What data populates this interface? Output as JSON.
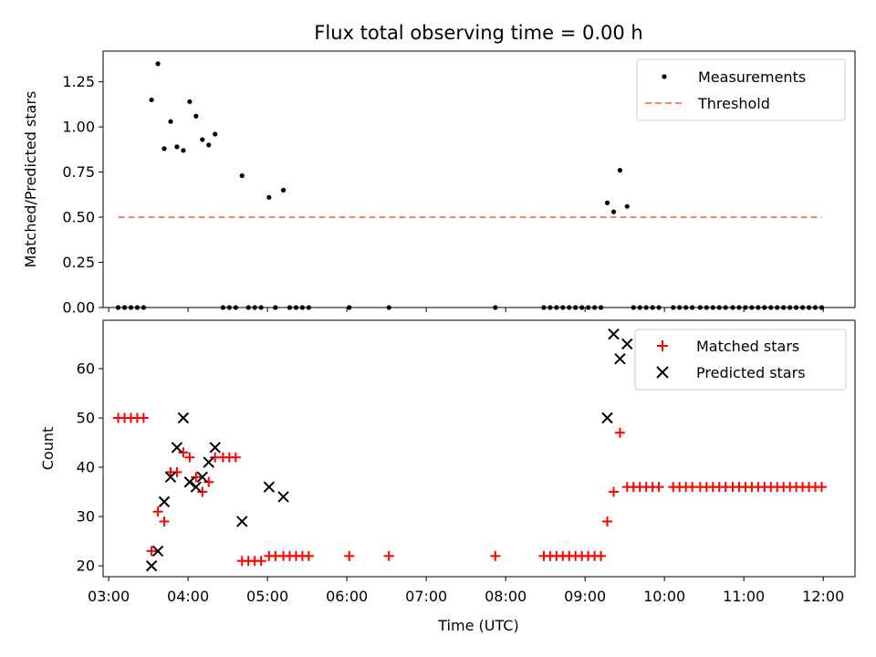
{
  "chart_data": [
    {
      "type": "scatter",
      "title": "Flux total observing time = 0.00 h",
      "xlabel": "",
      "ylabel": "Matched/Predicted stars",
      "ylim": [
        0,
        1.42
      ],
      "yticks": [
        "0.00",
        "0.25",
        "0.50",
        "0.75",
        "1.00",
        "1.25"
      ],
      "ytick_values": [
        0,
        0.25,
        0.5,
        0.75,
        1.0,
        1.25
      ],
      "legend_position": "upper right",
      "threshold": {
        "name": "Threshold",
        "y": 0.5,
        "x_range": [
          3.12,
          11.98
        ],
        "color": "#ff7f7f"
      },
      "measurements": {
        "name": "Measurements",
        "color": "#000000",
        "points": [
          [
            3.12,
            0
          ],
          [
            3.2,
            0
          ],
          [
            3.28,
            0
          ],
          [
            3.36,
            0
          ],
          [
            3.44,
            0
          ],
          [
            3.54,
            1.15
          ],
          [
            3.62,
            1.35
          ],
          [
            3.7,
            0.88
          ],
          [
            3.78,
            1.03
          ],
          [
            3.86,
            0.89
          ],
          [
            3.94,
            0.87
          ],
          [
            4.02,
            1.14
          ],
          [
            4.1,
            1.06
          ],
          [
            4.18,
            0.93
          ],
          [
            4.26,
            0.9
          ],
          [
            4.34,
            0.96
          ],
          [
            4.44,
            0
          ],
          [
            4.52,
            0
          ],
          [
            4.6,
            0
          ],
          [
            4.68,
            0.73
          ],
          [
            4.76,
            0
          ],
          [
            4.84,
            0
          ],
          [
            4.92,
            0
          ],
          [
            5.02,
            0.61
          ],
          [
            5.1,
            0
          ],
          [
            5.2,
            0.65
          ],
          [
            5.28,
            0
          ],
          [
            5.36,
            0
          ],
          [
            5.44,
            0
          ],
          [
            5.52,
            0
          ],
          [
            6.03,
            0
          ],
          [
            6.53,
            0
          ],
          [
            7.87,
            0
          ],
          [
            8.48,
            0
          ],
          [
            8.56,
            0
          ],
          [
            8.64,
            0
          ],
          [
            8.72,
            0
          ],
          [
            8.8,
            0
          ],
          [
            8.88,
            0
          ],
          [
            8.96,
            0
          ],
          [
            9.04,
            0
          ],
          [
            9.12,
            0
          ],
          [
            9.2,
            0
          ],
          [
            9.28,
            0.58
          ],
          [
            9.36,
            0.53
          ],
          [
            9.44,
            0.76
          ],
          [
            9.53,
            0.56
          ],
          [
            9.61,
            0
          ],
          [
            9.69,
            0
          ],
          [
            9.77,
            0
          ],
          [
            9.85,
            0
          ],
          [
            9.93,
            0
          ],
          [
            10.11,
            0
          ],
          [
            10.19,
            0
          ],
          [
            10.27,
            0
          ],
          [
            10.35,
            0
          ],
          [
            10.45,
            0
          ],
          [
            10.53,
            0
          ],
          [
            10.61,
            0
          ],
          [
            10.69,
            0
          ],
          [
            10.77,
            0
          ],
          [
            10.86,
            0
          ],
          [
            10.94,
            0
          ],
          [
            11.02,
            0
          ],
          [
            11.1,
            0
          ],
          [
            11.18,
            0
          ],
          [
            11.26,
            0
          ],
          [
            11.34,
            0
          ],
          [
            11.42,
            0
          ],
          [
            11.5,
            0
          ],
          [
            11.58,
            0
          ],
          [
            11.66,
            0
          ],
          [
            11.74,
            0
          ],
          [
            11.82,
            0
          ],
          [
            11.9,
            0
          ],
          [
            11.98,
            0
          ]
        ]
      }
    },
    {
      "type": "scatter",
      "title": "",
      "xlabel": "Time (UTC)",
      "ylabel": "Count",
      "xlim": [
        2.93,
        12.4
      ],
      "ylim": [
        17.8,
        69.8
      ],
      "yticks": [
        "20",
        "30",
        "40",
        "50",
        "60"
      ],
      "ytick_values": [
        20,
        30,
        40,
        50,
        60
      ],
      "xticks": [
        "03:00",
        "04:00",
        "05:00",
        "06:00",
        "07:00",
        "08:00",
        "09:00",
        "10:00",
        "11:00",
        "12:00"
      ],
      "xtick_values": [
        3,
        4,
        5,
        6,
        7,
        8,
        9,
        10,
        11,
        12
      ],
      "legend_position": "upper right",
      "series": [
        {
          "name": "Matched stars",
          "marker": "plus",
          "color": "#ff0000",
          "points": [
            [
              3.12,
              50
            ],
            [
              3.2,
              50
            ],
            [
              3.28,
              50
            ],
            [
              3.36,
              50
            ],
            [
              3.44,
              50
            ],
            [
              3.54,
              23
            ],
            [
              3.62,
              31
            ],
            [
              3.7,
              29
            ],
            [
              3.78,
              39
            ],
            [
              3.86,
              39
            ],
            [
              3.94,
              43
            ],
            [
              4.02,
              42
            ],
            [
              4.1,
              38
            ],
            [
              4.18,
              35
            ],
            [
              4.26,
              37
            ],
            [
              4.34,
              42
            ],
            [
              4.44,
              42
            ],
            [
              4.52,
              42
            ],
            [
              4.6,
              42
            ],
            [
              4.68,
              21
            ],
            [
              4.76,
              21
            ],
            [
              4.84,
              21
            ],
            [
              4.92,
              21
            ],
            [
              5.02,
              22
            ],
            [
              5.1,
              22
            ],
            [
              5.2,
              22
            ],
            [
              5.28,
              22
            ],
            [
              5.36,
              22
            ],
            [
              5.44,
              22
            ],
            [
              5.52,
              22
            ],
            [
              6.03,
              22
            ],
            [
              6.53,
              22
            ],
            [
              7.87,
              22
            ],
            [
              8.48,
              22
            ],
            [
              8.56,
              22
            ],
            [
              8.64,
              22
            ],
            [
              8.72,
              22
            ],
            [
              8.8,
              22
            ],
            [
              8.88,
              22
            ],
            [
              8.96,
              22
            ],
            [
              9.04,
              22
            ],
            [
              9.12,
              22
            ],
            [
              9.2,
              22
            ],
            [
              9.28,
              29
            ],
            [
              9.36,
              35
            ],
            [
              9.44,
              47
            ],
            [
              9.53,
              36
            ],
            [
              9.61,
              36
            ],
            [
              9.69,
              36
            ],
            [
              9.77,
              36
            ],
            [
              9.85,
              36
            ],
            [
              9.93,
              36
            ],
            [
              10.11,
              36
            ],
            [
              10.19,
              36
            ],
            [
              10.27,
              36
            ],
            [
              10.35,
              36
            ],
            [
              10.45,
              36
            ],
            [
              10.53,
              36
            ],
            [
              10.61,
              36
            ],
            [
              10.69,
              36
            ],
            [
              10.77,
              36
            ],
            [
              10.86,
              36
            ],
            [
              10.94,
              36
            ],
            [
              11.02,
              36
            ],
            [
              11.1,
              36
            ],
            [
              11.18,
              36
            ],
            [
              11.26,
              36
            ],
            [
              11.34,
              36
            ],
            [
              11.42,
              36
            ],
            [
              11.5,
              36
            ],
            [
              11.58,
              36
            ],
            [
              11.66,
              36
            ],
            [
              11.74,
              36
            ],
            [
              11.82,
              36
            ],
            [
              11.9,
              36
            ],
            [
              11.98,
              36
            ]
          ]
        },
        {
          "name": "Predicted stars",
          "marker": "x",
          "color": "#000000",
          "points": [
            [
              3.54,
              20
            ],
            [
              3.62,
              23
            ],
            [
              3.7,
              33
            ],
            [
              3.78,
              38
            ],
            [
              3.86,
              44
            ],
            [
              3.94,
              50
            ],
            [
              4.02,
              37
            ],
            [
              4.1,
              36
            ],
            [
              4.18,
              38
            ],
            [
              4.26,
              41
            ],
            [
              4.34,
              44
            ],
            [
              4.68,
              29
            ],
            [
              5.02,
              36
            ],
            [
              5.2,
              34
            ],
            [
              9.28,
              50
            ],
            [
              9.36,
              67
            ],
            [
              9.44,
              62
            ],
            [
              9.53,
              65
            ]
          ]
        }
      ]
    }
  ]
}
